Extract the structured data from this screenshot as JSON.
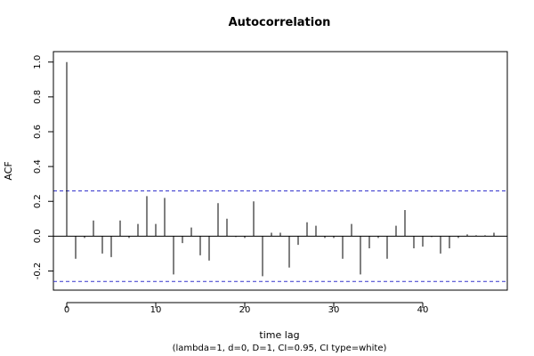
{
  "chart_data": {
    "type": "bar",
    "title": "Autocorrelation",
    "xlabel": "time lag",
    "ylabel": "ACF",
    "caption": "(lambda=1, d=0, D=1, CI=0.95, CI type=white)",
    "xlim": [
      -1.5,
      49.5
    ],
    "ylim": [
      -0.31,
      1.06
    ],
    "x_ticks": [
      0,
      10,
      20,
      30,
      40
    ],
    "x_tick_labels": [
      "0",
      "10",
      "20",
      "30",
      "40"
    ],
    "y_ticks": [
      -0.2,
      0.0,
      0.2,
      0.4,
      0.6,
      0.8,
      1.0
    ],
    "y_tick_labels": [
      "-0.2",
      "0.0",
      "0.2",
      "0.4",
      "0.6",
      "0.8",
      "1.0"
    ],
    "grid": false,
    "confidence_band": {
      "upper": 0.26,
      "lower": -0.26,
      "color": "#3333cc",
      "style": "dashed"
    },
    "bar_color": "#000000",
    "lags": [
      0,
      1,
      2,
      3,
      4,
      5,
      6,
      7,
      8,
      9,
      10,
      11,
      12,
      13,
      14,
      15,
      16,
      17,
      18,
      19,
      20,
      21,
      22,
      23,
      24,
      25,
      26,
      27,
      28,
      29,
      30,
      31,
      32,
      33,
      34,
      35,
      36,
      37,
      38,
      39,
      40,
      41,
      42,
      43,
      44,
      45,
      46,
      47,
      48
    ],
    "values": [
      1.0,
      -0.13,
      -0.01,
      0.09,
      -0.1,
      -0.12,
      0.09,
      -0.01,
      0.07,
      0.23,
      0.07,
      0.22,
      -0.22,
      -0.04,
      0.05,
      -0.11,
      -0.14,
      0.19,
      0.1,
      -0.005,
      -0.01,
      0.2,
      -0.23,
      0.02,
      0.02,
      -0.18,
      -0.05,
      0.08,
      0.06,
      -0.01,
      -0.01,
      -0.13,
      0.07,
      -0.22,
      -0.07,
      -0.01,
      -0.13,
      0.06,
      0.15,
      -0.07,
      -0.06,
      -0.005,
      -0.1,
      -0.07,
      -0.01,
      0.01,
      0.005,
      0.005,
      0.02
    ]
  }
}
